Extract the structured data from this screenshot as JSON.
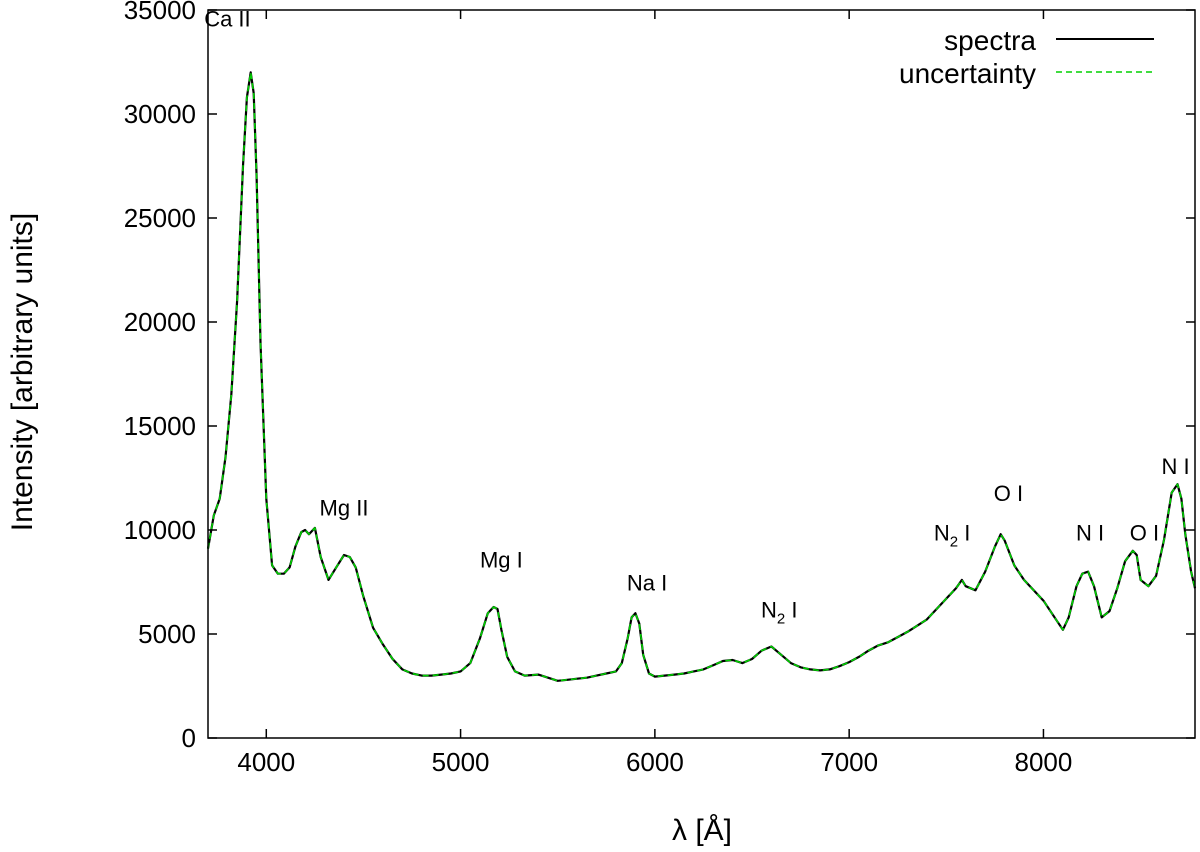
{
  "chart_data": {
    "type": "line",
    "title": "",
    "xlabel": "λ [Å]",
    "ylabel": "Intensity [arbitrary units]",
    "xlim": [
      3700,
      8780
    ],
    "ylim": [
      0,
      35000
    ],
    "xticks": [
      4000,
      5000,
      6000,
      7000,
      8000
    ],
    "yticks": [
      0,
      5000,
      10000,
      15000,
      20000,
      25000,
      30000,
      35000
    ],
    "grid": false,
    "legend_position": "top-right",
    "series": [
      {
        "name": "spectra",
        "color": "#000000",
        "style": "solid",
        "x": [
          3700,
          3730,
          3760,
          3790,
          3820,
          3850,
          3880,
          3900,
          3920,
          3935,
          3950,
          3970,
          4000,
          4030,
          4060,
          4090,
          4120,
          4150,
          4180,
          4200,
          4220,
          4250,
          4280,
          4320,
          4360,
          4400,
          4430,
          4460,
          4500,
          4550,
          4600,
          4650,
          4700,
          4750,
          4800,
          4850,
          4900,
          4950,
          5000,
          5050,
          5100,
          5140,
          5170,
          5190,
          5210,
          5240,
          5280,
          5330,
          5400,
          5450,
          5500,
          5550,
          5600,
          5650,
          5700,
          5750,
          5800,
          5830,
          5860,
          5880,
          5900,
          5920,
          5940,
          5970,
          6000,
          6050,
          6100,
          6150,
          6200,
          6250,
          6300,
          6350,
          6400,
          6450,
          6500,
          6550,
          6600,
          6650,
          6700,
          6750,
          6800,
          6850,
          6900,
          6950,
          7000,
          7050,
          7100,
          7150,
          7200,
          7250,
          7300,
          7350,
          7400,
          7450,
          7500,
          7550,
          7580,
          7600,
          7650,
          7700,
          7750,
          7780,
          7800,
          7850,
          7900,
          7950,
          8000,
          8050,
          8100,
          8130,
          8170,
          8200,
          8230,
          8260,
          8300,
          8340,
          8380,
          8420,
          8460,
          8480,
          8500,
          8540,
          8580,
          8620,
          8660,
          8690,
          8710,
          8730,
          8760,
          8780
        ],
        "y": [
          9100,
          10700,
          11500,
          13500,
          16500,
          21000,
          27500,
          30800,
          32000,
          31000,
          27000,
          19000,
          11500,
          8300,
          7900,
          7900,
          8200,
          9200,
          9900,
          10000,
          9800,
          10100,
          8700,
          7600,
          8200,
          8800,
          8700,
          8200,
          6800,
          5300,
          4500,
          3800,
          3300,
          3100,
          3000,
          3000,
          3050,
          3100,
          3200,
          3600,
          4800,
          6000,
          6300,
          6200,
          5200,
          3900,
          3200,
          3000,
          3050,
          2900,
          2750,
          2800,
          2850,
          2900,
          3000,
          3100,
          3200,
          3600,
          4800,
          5800,
          6000,
          5500,
          4000,
          3100,
          2950,
          3000,
          3050,
          3100,
          3200,
          3300,
          3500,
          3700,
          3750,
          3600,
          3800,
          4200,
          4400,
          4000,
          3600,
          3400,
          3300,
          3250,
          3300,
          3450,
          3650,
          3900,
          4200,
          4450,
          4600,
          4850,
          5100,
          5400,
          5700,
          6200,
          6700,
          7200,
          7600,
          7300,
          7100,
          8000,
          9200,
          9800,
          9500,
          8300,
          7600,
          7100,
          6600,
          5900,
          5200,
          5800,
          7300,
          7900,
          8000,
          7300,
          5800,
          6100,
          7200,
          8500,
          9000,
          8800,
          7600,
          7300,
          7800,
          9500,
          11800,
          12200,
          11500,
          9800,
          8000,
          7200
        ]
      },
      {
        "name": "uncertainty",
        "color": "#00d000",
        "style": "dashed",
        "same_as": "spectra"
      }
    ],
    "annotations": [
      {
        "label": "Ca II",
        "sub": "",
        "x": 3800,
        "y": 34200
      },
      {
        "label": "Mg II",
        "sub": "",
        "x": 4400,
        "y": 10700
      },
      {
        "label": "Mg I",
        "sub": "",
        "x": 5210,
        "y": 8200
      },
      {
        "label": "Na I",
        "sub": "",
        "x": 5960,
        "y": 7100
      },
      {
        "label": "N",
        "sub": "2",
        "label2": " I",
        "x": 6640,
        "y": 5800
      },
      {
        "label": "N",
        "sub": "2",
        "label2": " I",
        "x": 7530,
        "y": 9500
      },
      {
        "label": "O I",
        "sub": "",
        "x": 7820,
        "y": 11400
      },
      {
        "label": "N I",
        "sub": "",
        "x": 8240,
        "y": 9500
      },
      {
        "label": "O I",
        "sub": "",
        "x": 8520,
        "y": 9500
      },
      {
        "label": "N I",
        "sub": "",
        "x": 8680,
        "y": 12700
      }
    ]
  }
}
